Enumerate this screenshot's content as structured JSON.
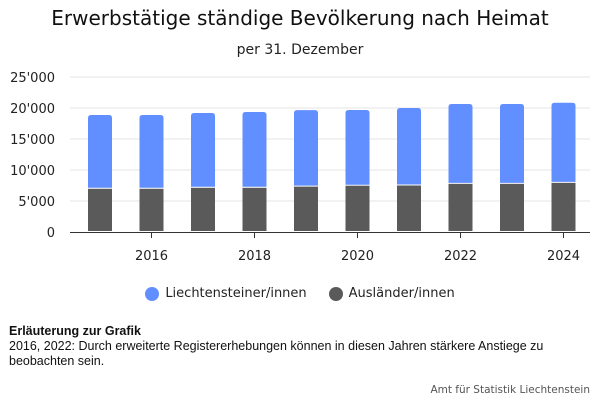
{
  "chart_data": {
    "type": "bar",
    "stacked": true,
    "title": "Erwerbstätige ständige Bevölkerung nach Heimat",
    "subtitle": "per 31. Dezember",
    "xlabel": "",
    "ylabel": "",
    "categories": [
      2015,
      2016,
      2017,
      2018,
      2019,
      2020,
      2021,
      2022,
      2023,
      2024
    ],
    "x_tick_labels": [
      "2016",
      "2018",
      "2020",
      "2022",
      "2024"
    ],
    "x_tick_values": [
      2016,
      2018,
      2020,
      2022,
      2024
    ],
    "y_tick_labels": [
      "0",
      "5'000",
      "10'000",
      "15'000",
      "20'000",
      "25'000"
    ],
    "y_tick_values": [
      0,
      5000,
      10000,
      15000,
      20000,
      25000
    ],
    "ylim": [
      0,
      25000
    ],
    "grid": true,
    "legend_position": "bottom",
    "series": [
      {
        "name": "Ausländer/innen",
        "color": "#5a5a5a",
        "values": [
          7050,
          7050,
          7210,
          7210,
          7400,
          7550,
          7580,
          7850,
          7850,
          8010
        ]
      },
      {
        "name": "Liechtensteiner/innen",
        "color": "#628fff",
        "values": [
          11820,
          11820,
          11980,
          12140,
          12250,
          12120,
          12420,
          12800,
          12800,
          12840
        ]
      }
    ]
  },
  "legend": [
    {
      "label": "Liechtensteiner/innen",
      "color": "#628fff"
    },
    {
      "label": "Ausländer/innen",
      "color": "#5a5a5a"
    }
  ],
  "note": {
    "heading": "Erläuterung zur Grafik",
    "text": "2016, 2022: Durch erweiterte Registererhebungen können in diesen Jahren stärkere Anstiege zu beobachten sein."
  },
  "source": "Amt für Statistik Liechtenstein"
}
